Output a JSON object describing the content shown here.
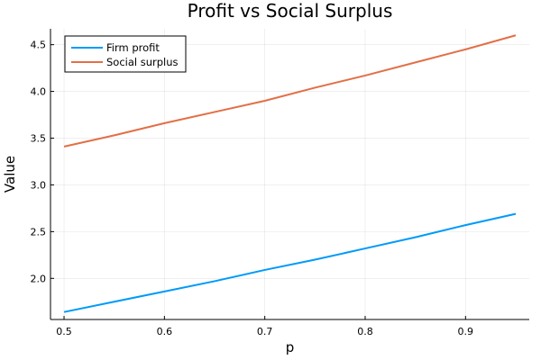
{
  "chart_data": {
    "type": "line",
    "title": "Profit vs Social Surplus",
    "xlabel": "p",
    "ylabel": "Value",
    "xlim": [
      0.4865,
      0.9635
    ],
    "ylim": [
      1.56,
      4.67
    ],
    "xticks": [
      0.5,
      0.6,
      0.7,
      0.8,
      0.9
    ],
    "xtick_labels": [
      "0.5",
      "0.6",
      "0.7",
      "0.8",
      "0.9"
    ],
    "yticks": [
      2.0,
      2.5,
      3.0,
      3.5,
      4.0,
      4.5
    ],
    "ytick_labels": [
      "2.0",
      "2.5",
      "3.0",
      "3.5",
      "4.0",
      "4.5"
    ],
    "grid": true,
    "legend_position": "top-left",
    "x": [
      0.5,
      0.55,
      0.6,
      0.65,
      0.7,
      0.75,
      0.8,
      0.85,
      0.9,
      0.95
    ],
    "series": [
      {
        "name": "Firm profit",
        "color": "#009af9",
        "values": [
          1.64,
          1.75,
          1.86,
          1.97,
          2.09,
          2.2,
          2.32,
          2.44,
          2.57,
          2.69
        ]
      },
      {
        "name": "Social surplus",
        "color": "#e26f46",
        "values": [
          3.41,
          3.53,
          3.66,
          3.78,
          3.9,
          4.04,
          4.17,
          4.31,
          4.45,
          4.6
        ]
      }
    ]
  }
}
